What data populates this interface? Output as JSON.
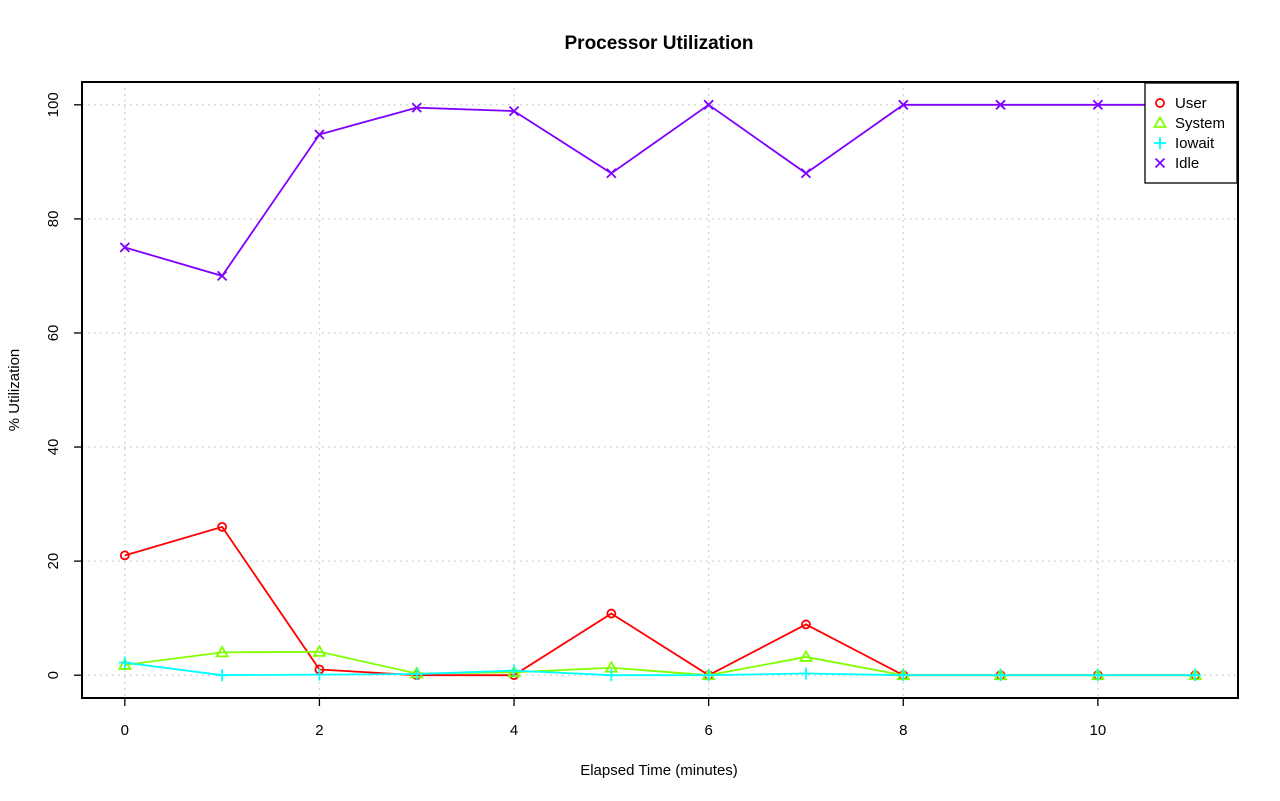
{
  "chart_data": {
    "type": "line",
    "title": "Processor Utilization",
    "xlabel": "Elapsed Time (minutes)",
    "ylabel": "% Utilization",
    "xlim": [
      -0.44,
      11.44
    ],
    "ylim": [
      -4,
      104
    ],
    "xticks": [
      0,
      2,
      4,
      6,
      8,
      10
    ],
    "yticks": [
      0,
      20,
      40,
      60,
      80,
      100
    ],
    "grid": true,
    "legend_position": "top-right",
    "x": [
      0,
      1,
      2,
      3,
      4,
      5,
      6,
      7,
      8,
      9,
      10,
      11
    ],
    "series": [
      {
        "name": "User",
        "color": "#ff0000",
        "marker": "circle",
        "values": [
          21,
          26,
          1,
          0,
          0,
          10.8,
          0,
          8.9,
          0,
          0,
          0,
          0
        ]
      },
      {
        "name": "System",
        "color": "#80ff00",
        "marker": "triangle",
        "values": [
          1.8,
          4,
          4.1,
          0.3,
          0.5,
          1.3,
          0,
          3.2,
          0,
          0,
          0,
          0
        ]
      },
      {
        "name": "Iowait",
        "color": "#00ffff",
        "marker": "plus",
        "values": [
          2.2,
          0,
          0.1,
          0.2,
          0.8,
          0,
          0,
          0.3,
          0,
          0,
          0,
          0
        ]
      },
      {
        "name": "Idle",
        "color": "#8000ff",
        "marker": "cross",
        "values": [
          75,
          70,
          94.8,
          99.5,
          98.9,
          88,
          100,
          88,
          100,
          100,
          100,
          100
        ]
      }
    ]
  }
}
